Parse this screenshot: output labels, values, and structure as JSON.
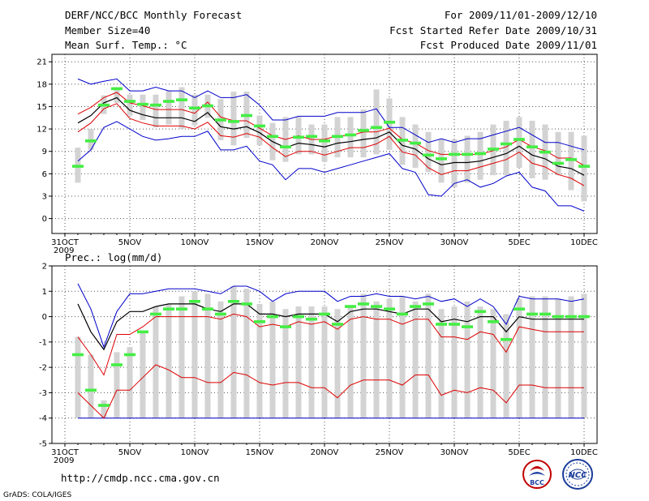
{
  "header": {
    "title_left_1": "DERF/NCC/BCC Monthly Forecast",
    "title_left_2": "Member Size=40",
    "title_left_3": "Mean Surf. Temp.: °C",
    "title_right_1": "For 2009/11/01-2009/12/10",
    "title_right_2": "Fcst Started Refer Date 2009/10/31",
    "title_right_3": "Fcst Produced Date 2009/11/01"
  },
  "footer": {
    "url": "http://cmdp.ncc.cma.gov.cn",
    "credit": "GrADS: COLA/IGES",
    "logo_bcc": "BCC",
    "logo_ncc": "NCC"
  },
  "colors": {
    "box": "#d3d3d3",
    "median": "#44ee44",
    "max": "#0000cc",
    "min": "#0000cc",
    "mean": "#000000",
    "band": "#dd0000"
  },
  "chart_data": [
    {
      "type": "box",
      "title": "Mean Surf. Temp.: °C",
      "x_ticks": [
        {
          "day": 0,
          "label": "31OCT"
        },
        {
          "day": 5,
          "label": "5NOV"
        },
        {
          "day": 10,
          "label": "10NOV"
        },
        {
          "day": 15,
          "label": "15NOV"
        },
        {
          "day": 20,
          "label": "20NOV"
        },
        {
          "day": 25,
          "label": "25NOV"
        },
        {
          "day": 30,
          "label": "30NOV"
        },
        {
          "day": 35,
          "label": "5DEC"
        },
        {
          "day": 40,
          "label": "10DEC"
        }
      ],
      "x_year": "2009",
      "x_range": [
        0,
        40
      ],
      "ylim": [
        -2,
        22
      ],
      "y_ticks": [
        0,
        3,
        6,
        9,
        12,
        15,
        18,
        21
      ],
      "days": [
        1,
        2,
        3,
        4,
        5,
        6,
        7,
        8,
        9,
        10,
        11,
        12,
        13,
        14,
        15,
        16,
        17,
        18,
        19,
        20,
        21,
        22,
        23,
        24,
        25,
        26,
        27,
        28,
        29,
        30,
        31,
        32,
        33,
        34,
        35,
        36,
        37,
        38,
        39,
        40
      ],
      "box_low": [
        4.8,
        9.2,
        14.0,
        15.5,
        13.8,
        13.2,
        12.2,
        12.6,
        12.0,
        12.5,
        13.5,
        10.5,
        9.8,
        10.8,
        9.8,
        7.8,
        7.6,
        8.6,
        8.6,
        7.6,
        8.2,
        8.2,
        8.2,
        8.6,
        9.2,
        7.2,
        6.8,
        6.2,
        4.8,
        4.2,
        4.8,
        5.2,
        5.8,
        5.8,
        6.8,
        5.4,
        5.2,
        5.8,
        3.8,
        2.3
      ],
      "box_high": [
        9.5,
        12.0,
        16.5,
        17.6,
        16.6,
        16.6,
        16.6,
        17.1,
        17.6,
        16.6,
        16.6,
        16.0,
        17.0,
        17.0,
        13.8,
        12.8,
        13.6,
        13.6,
        12.6,
        12.6,
        13.6,
        13.6,
        14.6,
        17.3,
        16.1,
        13.6,
        12.6,
        11.6,
        10.6,
        10.6,
        11.1,
        11.6,
        12.6,
        13.1,
        13.6,
        13.1,
        12.6,
        11.6,
        11.6,
        11.1
      ],
      "median": [
        7.0,
        10.4,
        15.2,
        17.4,
        15.7,
        15.3,
        15.2,
        15.7,
        15.9,
        14.8,
        15.1,
        13.2,
        13.0,
        13.8,
        12.4,
        11.0,
        9.6,
        10.9,
        11.0,
        10.4,
        11.0,
        11.2,
        11.8,
        12.2,
        12.9,
        10.5,
        10.1,
        8.5,
        8.0,
        8.6,
        8.6,
        8.7,
        9.3,
        10.0,
        10.6,
        9.6,
        8.9,
        7.4,
        7.9,
        7.0
      ],
      "max": [
        18.7,
        18.0,
        18.4,
        18.7,
        17.1,
        17.1,
        17.6,
        17.1,
        17.1,
        16.2,
        17.1,
        16.2,
        16.2,
        16.6,
        15.2,
        13.2,
        13.2,
        13.7,
        13.7,
        13.7,
        14.2,
        14.2,
        14.2,
        14.7,
        12.2,
        12.2,
        11.2,
        10.2,
        10.7,
        10.2,
        10.7,
        10.7,
        11.2,
        11.7,
        12.2,
        11.2,
        10.2,
        10.2,
        9.7,
        9.2
      ],
      "min": [
        7.7,
        9.2,
        12.2,
        13.0,
        12.0,
        11.0,
        10.5,
        10.7,
        11.0,
        11.0,
        11.7,
        9.2,
        9.2,
        9.7,
        7.7,
        7.2,
        5.2,
        6.7,
        6.7,
        6.2,
        6.7,
        7.2,
        7.7,
        8.2,
        8.7,
        6.7,
        6.2,
        3.2,
        3.0,
        4.7,
        5.2,
        4.2,
        4.7,
        5.7,
        6.2,
        4.2,
        3.7,
        1.7,
        1.7,
        1.0
      ],
      "band_high": [
        14.0,
        14.9,
        16.2,
        16.9,
        15.5,
        15.1,
        14.6,
        14.6,
        14.6,
        14.1,
        15.6,
        13.6,
        13.1,
        13.1,
        12.1,
        11.1,
        10.6,
        11.1,
        10.6,
        10.6,
        11.1,
        11.1,
        11.6,
        11.6,
        12.1,
        10.6,
        10.1,
        9.1,
        8.6,
        8.6,
        8.6,
        8.6,
        9.1,
        9.6,
        10.6,
        9.6,
        9.1,
        8.1,
        8.1,
        7.1
      ],
      "band_low": [
        11.6,
        12.8,
        14.7,
        15.4,
        13.4,
        12.8,
        12.4,
        12.4,
        12.4,
        12.0,
        12.9,
        11.1,
        10.9,
        11.4,
        10.9,
        9.5,
        8.3,
        9.0,
        9.0,
        8.5,
        9.0,
        9.5,
        9.5,
        10.0,
        11.0,
        8.9,
        8.5,
        6.8,
        5.9,
        6.4,
        6.4,
        6.9,
        7.4,
        7.9,
        8.9,
        7.4,
        6.9,
        5.9,
        5.4,
        4.4
      ],
      "mean": [
        12.8,
        13.8,
        15.5,
        16.2,
        14.5,
        13.9,
        13.5,
        13.5,
        13.5,
        13.0,
        14.2,
        12.3,
        12.0,
        12.3,
        11.5,
        10.3,
        9.5,
        10.1,
        9.9,
        9.6,
        10.1,
        10.3,
        10.6,
        10.8,
        11.6,
        9.8,
        9.3,
        8.0,
        7.2,
        7.5,
        7.5,
        7.7,
        8.2,
        8.7,
        9.7,
        8.5,
        8.0,
        7.0,
        6.7,
        5.8
      ]
    },
    {
      "type": "box",
      "title": "Prec.: log(mm/d)",
      "x_ticks": [
        {
          "day": 0,
          "label": "31OCT"
        },
        {
          "day": 5,
          "label": "5NOV"
        },
        {
          "day": 10,
          "label": "10NOV"
        },
        {
          "day": 15,
          "label": "15NOV"
        },
        {
          "day": 20,
          "label": "20NOV"
        },
        {
          "day": 25,
          "label": "25NOV"
        },
        {
          "day": 30,
          "label": "30NOV"
        },
        {
          "day": 35,
          "label": "5DEC"
        },
        {
          "day": 40,
          "label": "10DEC"
        }
      ],
      "x_year": "2009",
      "x_range": [
        0,
        40
      ],
      "ylim": [
        -5,
        2
      ],
      "y_ticks": [
        -5,
        -4,
        -3,
        -2,
        -1,
        0,
        1,
        2
      ],
      "days": [
        1,
        2,
        3,
        4,
        5,
        6,
        7,
        8,
        9,
        10,
        11,
        12,
        13,
        14,
        15,
        16,
        17,
        18,
        19,
        20,
        21,
        22,
        23,
        24,
        25,
        26,
        27,
        28,
        29,
        30,
        31,
        32,
        33,
        34,
        35,
        36,
        37,
        38,
        39,
        40
      ],
      "box_low": [
        -4,
        -4,
        -4,
        -4,
        -4,
        -4,
        -4,
        -4,
        -4,
        -4,
        -4,
        -4,
        -4,
        -4,
        -4,
        -4,
        -4,
        -4,
        -4,
        -4,
        -4,
        -4,
        -4,
        -4,
        -4,
        -4,
        -4,
        -4,
        -4,
        -4,
        -4,
        -4,
        -4,
        -4,
        -4,
        -4,
        -4,
        -4,
        -4,
        -4
      ],
      "box_high": [
        -0.8,
        -1.5,
        -3.3,
        -1.4,
        -1.2,
        -0.6,
        0.4,
        0.5,
        0.8,
        1.0,
        0.9,
        0.6,
        1.2,
        1.1,
        0.5,
        0.6,
        0.3,
        0.4,
        0.4,
        0.4,
        0.3,
        0.4,
        0.9,
        0.6,
        0.7,
        0.8,
        0.6,
        0.9,
        0.3,
        0.4,
        0.6,
        0.4,
        0.3,
        0.1,
        0.7,
        0.8,
        0.8,
        0.7,
        0.8,
        0.9
      ],
      "median": [
        -1.5,
        -2.9,
        -3.5,
        -1.9,
        -1.5,
        -0.6,
        0.1,
        0.3,
        0.3,
        0.6,
        0.3,
        0.1,
        0.6,
        0.5,
        -0.2,
        0.0,
        -0.4,
        0.0,
        -0.1,
        0.1,
        -0.3,
        0.4,
        0.5,
        0.4,
        0.3,
        0.1,
        0.4,
        0.5,
        -0.3,
        -0.3,
        -0.4,
        0.2,
        -0.2,
        -0.9,
        0.3,
        0.1,
        0.1,
        0.0,
        0.0,
        0.0
      ],
      "max": [
        1.3,
        0.3,
        -1.2,
        0.2,
        0.9,
        0.9,
        1.0,
        1.1,
        1.1,
        1.1,
        1.0,
        0.9,
        1.2,
        1.2,
        1.0,
        0.6,
        0.9,
        1.0,
        1.0,
        1.0,
        0.6,
        0.8,
        0.8,
        0.9,
        0.8,
        0.8,
        0.7,
        0.8,
        0.6,
        0.7,
        0.4,
        0.7,
        0.4,
        -0.3,
        0.8,
        0.7,
        0.7,
        0.7,
        0.6,
        0.7
      ],
      "min": [
        -4,
        -4,
        -4,
        -4,
        -4,
        -4,
        -4,
        -4,
        -4,
        -4,
        -4,
        -4,
        -4,
        -4,
        -4,
        -4,
        -4,
        -4,
        -4,
        -4,
        -4,
        -4,
        -4,
        -4,
        -4,
        -4,
        -4,
        -4,
        -4,
        -4,
        -4,
        -4,
        -4,
        -4,
        -4,
        -4,
        -4,
        -4,
        -4,
        -4
      ],
      "band_high": [
        -0.8,
        -1.5,
        -2.3,
        -0.7,
        -0.7,
        -0.4,
        0.0,
        0.0,
        0.0,
        0.0,
        0.0,
        -0.1,
        0.1,
        0.0,
        -0.4,
        -0.3,
        -0.4,
        -0.2,
        -0.3,
        -0.2,
        -0.5,
        -0.1,
        0.0,
        -0.1,
        -0.1,
        -0.3,
        -0.1,
        -0.1,
        -0.8,
        -0.8,
        -0.9,
        -0.6,
        -0.7,
        -1.4,
        -0.4,
        -0.5,
        -0.6,
        -0.6,
        -0.6,
        -0.6
      ],
      "band_low": [
        -3.0,
        -3.5,
        -4.0,
        -2.9,
        -2.9,
        -2.4,
        -1.9,
        -2.1,
        -2.4,
        -2.4,
        -2.6,
        -2.6,
        -2.2,
        -2.3,
        -2.6,
        -2.7,
        -2.6,
        -2.6,
        -2.8,
        -2.8,
        -3.2,
        -2.7,
        -2.5,
        -2.5,
        -2.5,
        -2.7,
        -2.3,
        -2.3,
        -3.1,
        -2.9,
        -3.0,
        -2.8,
        -2.9,
        -3.4,
        -2.7,
        -2.7,
        -2.8,
        -2.8,
        -2.8,
        -2.8
      ],
      "mean": [
        0.5,
        -0.6,
        -1.3,
        -0.2,
        0.2,
        0.2,
        0.4,
        0.5,
        0.5,
        0.5,
        0.3,
        0.2,
        0.5,
        0.5,
        0.1,
        0.1,
        0.0,
        0.1,
        0.1,
        0.1,
        -0.2,
        0.2,
        0.3,
        0.3,
        0.2,
        0.1,
        0.3,
        0.3,
        -0.2,
        -0.1,
        -0.2,
        0.0,
        0.0,
        -0.6,
        0.0,
        -0.1,
        -0.1,
        -0.1,
        -0.1,
        -0.1
      ]
    }
  ]
}
